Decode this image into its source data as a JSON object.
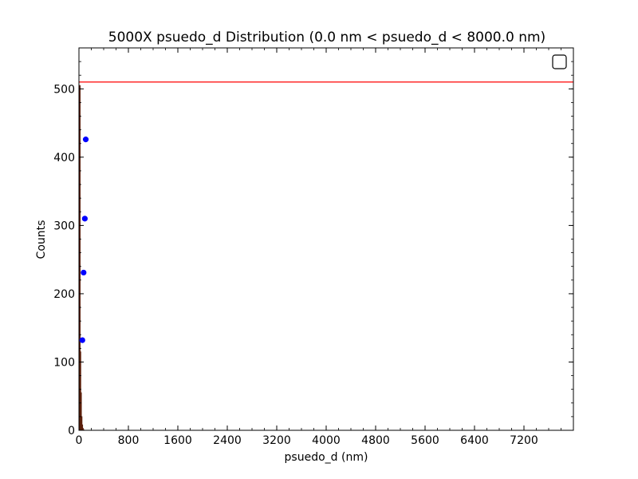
{
  "chart_data": {
    "type": "bar",
    "title": "5000X psuedo_d Distribution (0.0 nm < psuedo_d < 8000.0  nm)",
    "xlabel": "psuedo_d (nm)",
    "ylabel": "Counts",
    "xlim": [
      0,
      8000
    ],
    "ylim": [
      0,
      560
    ],
    "x_ticks": [
      0,
      800,
      1600,
      2400,
      3200,
      4000,
      4800,
      5600,
      6400,
      7200
    ],
    "x_tick_labels": [
      "0",
      "800",
      "1600",
      "2400",
      "3200",
      "4000",
      "4800",
      "5600",
      "6400",
      "7200"
    ],
    "y_ticks": [
      0,
      100,
      200,
      300,
      400,
      500
    ],
    "y_tick_labels": [
      "0",
      "100",
      "200",
      "300",
      "400",
      "500"
    ],
    "grid": false,
    "legend": "top-right",
    "histogram": {
      "bin_edges": [
        0,
        10,
        20,
        30,
        40,
        50,
        60,
        70,
        80
      ],
      "values": [
        3,
        505,
        115,
        55,
        20,
        8,
        3,
        1
      ],
      "color": "#a0522d"
    },
    "scatter": {
      "x": [
        55,
        75,
        95,
        110
      ],
      "y": [
        132,
        231,
        310,
        426
      ],
      "color": "#0000ff"
    },
    "hline": {
      "y": 510,
      "color": "#ff0000"
    }
  }
}
